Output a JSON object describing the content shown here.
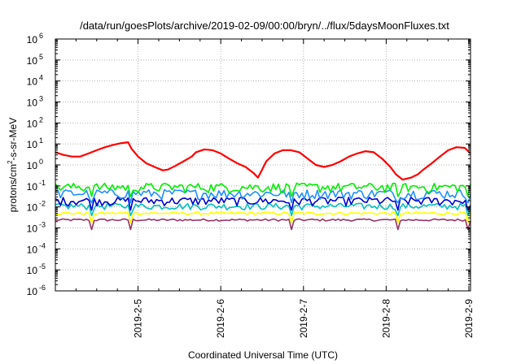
{
  "chart_data": {
    "type": "line",
    "title": "/data/run/goesPlots/archive/2019-02-09/00:00/bryn/../flux/5daysMoonFluxes.txt",
    "xlabel": "Coordinated Universal Time (UTC)",
    "ylabel_parts": {
      "base": "protons/cm",
      "sup": "2",
      "rest": "-s-sr-MeV"
    },
    "x_range_days": [
      4.0,
      9.02
    ],
    "x_ticks": [
      {
        "day": 5,
        "label": "2019-2-5"
      },
      {
        "day": 6,
        "label": "2019-2-6"
      },
      {
        "day": 7,
        "label": "2019-2-7"
      },
      {
        "day": 8,
        "label": "2019-2-8"
      },
      {
        "day": 9,
        "label": "2019-2-9"
      }
    ],
    "y_scale": "log",
    "y_range_exp": [
      -6,
      6
    ],
    "y_ticks": [
      {
        "base": "10",
        "exp": "6"
      },
      {
        "base": "10",
        "exp": "5"
      },
      {
        "base": "10",
        "exp": "4"
      },
      {
        "base": "10",
        "exp": "3"
      },
      {
        "base": "10",
        "exp": "2"
      },
      {
        "base": "10",
        "exp": "1"
      },
      {
        "base": "10",
        "exp": "0"
      },
      {
        "base": "10",
        "exp": "-1"
      },
      {
        "base": "10",
        "exp": "-2"
      },
      {
        "base": "10",
        "exp": "-3"
      },
      {
        "base": "10",
        "exp": "-4"
      },
      {
        "base": "10",
        "exp": "-5"
      },
      {
        "base": "10",
        "exp": "-6"
      }
    ],
    "grid": true,
    "series": [
      {
        "color": "#ff0000",
        "x": [
          4.0,
          4.1,
          4.2,
          4.3,
          4.4,
          4.5,
          4.6,
          4.7,
          4.8,
          4.88,
          4.92,
          5.0,
          5.1,
          5.2,
          5.3,
          5.36,
          5.45,
          5.55,
          5.65,
          5.7,
          5.8,
          5.9,
          6.0,
          6.1,
          6.2,
          6.3,
          6.4,
          6.45,
          6.5,
          6.55,
          6.65,
          6.75,
          6.85,
          6.95,
          7.05,
          7.15,
          7.25,
          7.35,
          7.45,
          7.55,
          7.65,
          7.75,
          7.85,
          7.95,
          8.05,
          8.12,
          8.2,
          8.3,
          8.38,
          8.45,
          8.55,
          8.65,
          8.75,
          8.85,
          8.95,
          9.02
        ],
        "y": [
          4.0,
          3.0,
          2.5,
          2.5,
          3.5,
          5.0,
          7.0,
          9.0,
          11.0,
          12.0,
          6.0,
          2.5,
          1.2,
          0.8,
          0.55,
          0.6,
          0.9,
          1.5,
          2.5,
          4.0,
          5.5,
          5.0,
          3.5,
          2.0,
          1.2,
          0.8,
          0.4,
          0.25,
          0.6,
          1.5,
          3.5,
          5.0,
          5.0,
          4.0,
          2.0,
          1.0,
          0.8,
          1.0,
          1.5,
          2.5,
          3.5,
          4.5,
          4.0,
          2.0,
          0.8,
          0.35,
          0.2,
          0.25,
          0.35,
          0.6,
          1.2,
          2.5,
          5.0,
          7.0,
          6.5,
          3.5
        ]
      },
      {
        "color": "#00ee00",
        "base": 0.09,
        "amp": 0.5,
        "dips": [
          4.45,
          4.92,
          6.85,
          8.15,
          9.0
        ]
      },
      {
        "color": "#1e90ff",
        "base": 0.045,
        "amp": 0.5,
        "dips": [
          4.45,
          4.92,
          6.85,
          8.15,
          9.0
        ]
      },
      {
        "color": "#0000cd",
        "base": 0.02,
        "amp": 0.45,
        "dips": [
          4.45,
          4.92,
          6.85,
          8.15,
          9.0
        ]
      },
      {
        "color": "#00bfbf",
        "base": 0.011,
        "amp": 0.35,
        "dips": [
          4.45,
          4.92,
          6.85,
          8.15,
          9.0
        ]
      },
      {
        "color": "#ffff00",
        "base": 0.005,
        "amp": 0.15,
        "dips": [
          4.45,
          4.92,
          6.85,
          8.15,
          9.0
        ]
      },
      {
        "color": "#993366",
        "base": 0.0024,
        "amp": 0.12,
        "dips": [
          4.45,
          4.92,
          6.85,
          8.15,
          9.0
        ]
      }
    ]
  }
}
